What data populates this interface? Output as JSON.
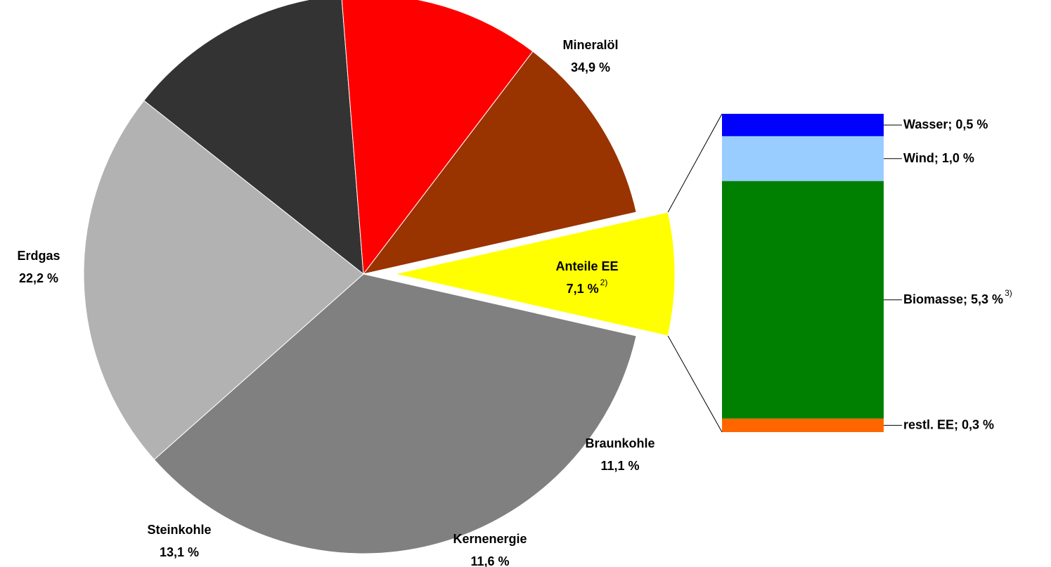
{
  "chart_data": [
    {
      "type": "pie",
      "categories": [
        "Mineralöl",
        "Erdgas",
        "Steinkohle",
        "Kernenergie",
        "Braunkohle",
        "Anteile EE"
      ],
      "values": [
        34.9,
        22.2,
        13.1,
        11.6,
        11.1,
        7.1
      ],
      "value_labels": [
        "34,9 %",
        "22,2 %",
        "13,1 %",
        "11,6 %",
        "11,1 %",
        "7,1 %"
      ],
      "value_label_notes": [
        null,
        null,
        null,
        null,
        null,
        "2)"
      ],
      "colors": [
        "#808080",
        "#b2b2b2",
        "#333333",
        "#ff0000",
        "#993300",
        "#ffff00"
      ],
      "exploded": "Anteile EE"
    },
    {
      "type": "bar",
      "values": [
        0.5,
        1.0,
        5.3,
        0.3
      ],
      "value_labels": [
        "Wasser; 0,5 %",
        "Wind; 1,0 %",
        "Biomasse; 5,3 %",
        "restl. EE; 0,3 %"
      ],
      "value_label_notes": [
        null,
        null,
        "3)",
        null
      ],
      "colors": [
        "#0000ff",
        "#99ccff",
        "#008000",
        "#ff6600"
      ]
    }
  ]
}
